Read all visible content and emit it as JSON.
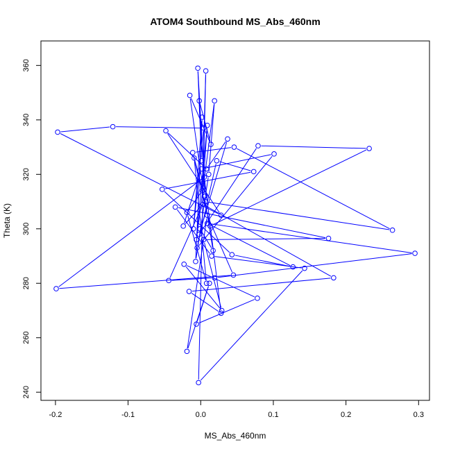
{
  "chart_data": {
    "type": "line",
    "markers": "circle",
    "title": "ATOM4 Southbound MS_Abs_460nm",
    "xlabel": "MS_Abs_460nm",
    "ylabel": "Theta (K)",
    "xlim": [
      -0.22,
      0.315
    ],
    "ylim": [
      237,
      369
    ],
    "x_ticks": [
      -0.2,
      -0.1,
      0.0,
      0.1,
      0.2,
      0.3
    ],
    "x_tick_labels": [
      "-0.2",
      "-0.1",
      "0.0",
      "0.1",
      "0.2",
      "0.3"
    ],
    "y_ticks": [
      240,
      260,
      280,
      300,
      320,
      340,
      360
    ],
    "y_tick_labels": [
      "240",
      "260",
      "280",
      "300",
      "320",
      "340",
      "360"
    ],
    "grid": false,
    "legend": "none",
    "series_color": "#0000ff",
    "series": [
      {
        "x": [
          0.001,
          -0.004,
          0.006,
          -0.002,
          0.014,
          -0.015,
          0.003,
          0.009,
          -0.006,
          0.019,
          0.011,
          -0.007,
          0.002,
          -0.01,
          0.004,
          -0.121,
          -0.197,
          0.028,
          -0.048,
          0.008,
          0.037,
          -0.002,
          0.079,
          0.232,
          0.013,
          -0.011,
          0.046,
          0.264,
          0.006,
          -0.024,
          0.001,
          0.101,
          -0.005,
          0.022,
          0.073,
          -0.053,
          0.043,
          0.127,
          0.009,
          0.295,
          0.019,
          -0.044,
          0.003,
          0.183,
          -0.016,
          0.028,
          0.005,
          -0.199,
          0.045,
          0.009,
          -0.019,
          0.012,
          -0.006,
          0.078,
          -0.023,
          0.029,
          0.004,
          0.176,
          -0.035,
          0.015,
          0.143,
          -0.003,
          0.007,
          0.002,
          -0.019,
          0.008,
          -0.009,
          0.005,
          0.017,
          -0.001
        ],
        "y": [
          325,
          359,
          312,
          347,
          331,
          349,
          315,
          338,
          296,
          347,
          320,
          288,
          341,
          300,
          337,
          337.5,
          335.5,
          305,
          336,
          322,
          333,
          298,
          330.5,
          329.5,
          301,
          328,
          330,
          299.5,
          310,
          301,
          322,
          327.5,
          293,
          325,
          321,
          314.5,
          290.5,
          286,
          302,
          291,
          282,
          281,
          309,
          282,
          277,
          269,
          319,
          278,
          283,
          305,
          255,
          280,
          265,
          274.5,
          287,
          270,
          296,
          296.5,
          308,
          290,
          285.5,
          243.5,
          358,
          314,
          306,
          280,
          326,
          312,
          292,
          300
        ]
      }
    ]
  }
}
